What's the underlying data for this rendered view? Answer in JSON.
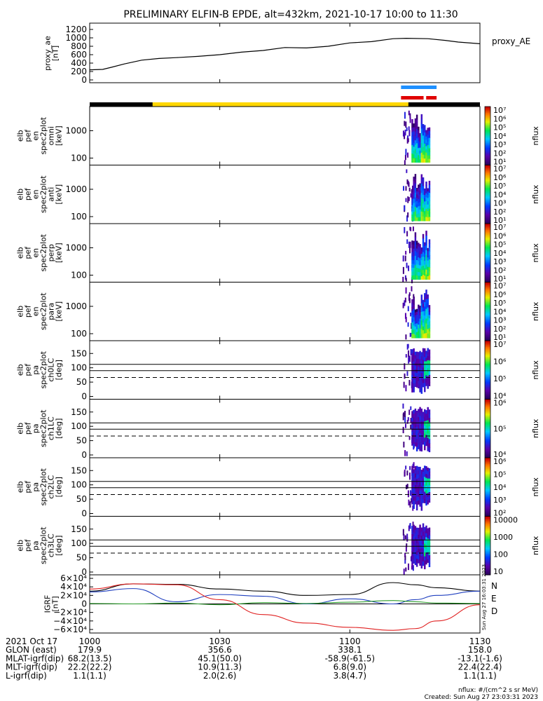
{
  "title": "PRELIMINARY ELFIN-B EPDE, alt=432km, 2021-10-17 10:00 to 11:30",
  "ae_panel": {
    "ylabel_lines": [
      "proxy_ae",
      "[nT]"
    ],
    "yticks": [
      "0",
      "200",
      "400",
      "600",
      "800",
      "1000",
      "1200"
    ],
    "legend": "proxy_AE"
  },
  "energy_panels": [
    {
      "ylabel_lines": [
        "elb",
        "pef",
        "en",
        "spec2plot",
        "omni",
        "[keV]"
      ],
      "yticks": [
        "100",
        "1000"
      ],
      "cbar_ticks": [
        "10⁷",
        "10⁶",
        "10⁵",
        "10⁴",
        "10³",
        "10²",
        "10¹"
      ],
      "cbar_label": "nflux"
    },
    {
      "ylabel_lines": [
        "elb",
        "pef",
        "en",
        "spec2plot",
        "anti",
        "[keV]"
      ],
      "yticks": [
        "100",
        "1000"
      ],
      "cbar_ticks": [
        "10⁷",
        "10⁶",
        "10⁵",
        "10⁴",
        "10³",
        "10²",
        "10¹"
      ],
      "cbar_label": "nflux"
    },
    {
      "ylabel_lines": [
        "elb",
        "pef",
        "en",
        "spec2plot",
        "perp",
        "[keV]"
      ],
      "yticks": [
        "100",
        "1000"
      ],
      "cbar_ticks": [
        "10⁷",
        "10⁶",
        "10⁵",
        "10⁴",
        "10³",
        "10²",
        "10¹"
      ],
      "cbar_label": "nflux"
    },
    {
      "ylabel_lines": [
        "elb",
        "pef",
        "en",
        "spec2plot",
        "para",
        "[keV]"
      ],
      "yticks": [
        "100",
        "1000"
      ],
      "cbar_ticks": [
        "10⁷",
        "10⁶",
        "10⁵",
        "10⁴",
        "10³",
        "10²",
        "10¹"
      ],
      "cbar_label": "nflux"
    }
  ],
  "pa_panels": [
    {
      "ylabel_lines": [
        "elb",
        "pef",
        "pa",
        "spec2plot",
        "ch0LC",
        "[deg]"
      ],
      "yticks": [
        "0",
        "50",
        "100",
        "150"
      ],
      "cbar_ticks": [
        "10⁷",
        "10⁶",
        "10⁵",
        "10⁴"
      ],
      "cbar_label": "nflux"
    },
    {
      "ylabel_lines": [
        "elb",
        "pef",
        "pa",
        "spec2plot",
        "ch1LC",
        "[deg]"
      ],
      "yticks": [
        "0",
        "50",
        "100",
        "150"
      ],
      "cbar_ticks": [
        "10⁶",
        "10⁵",
        "10⁴"
      ],
      "cbar_label": "nflux"
    },
    {
      "ylabel_lines": [
        "elb",
        "pef",
        "pa",
        "spec2plot",
        "ch2LC",
        "[deg]"
      ],
      "yticks": [
        "0",
        "50",
        "100",
        "150"
      ],
      "cbar_ticks": [
        "10⁶",
        "10⁵",
        "10⁴",
        "10³",
        "10²"
      ],
      "cbar_label": "nflux"
    },
    {
      "ylabel_lines": [
        "elb",
        "pef",
        "pa",
        "spec2plot",
        "ch3LC",
        "[deg]"
      ],
      "yticks": [
        "0",
        "50",
        "100",
        "150"
      ],
      "cbar_ticks": [
        "10000",
        "1000",
        "100",
        "10"
      ],
      "cbar_label": "nflux"
    }
  ],
  "igrf_panel": {
    "ylabel_lines": [
      "IGRF",
      "[nT]"
    ],
    "yticks": [
      "−6×10⁴",
      "−4×10⁴",
      "−2×10⁴",
      "0",
      "2×10⁴",
      "4×10⁴",
      "6×10⁴"
    ],
    "legend": [
      "N",
      "E",
      "D"
    ],
    "side_text": "Sun Aug 27 16:03:31 2023"
  },
  "footer": {
    "rows": [
      {
        "label": "2021 Oct 17",
        "values": [
          "1000",
          "1030",
          "1100",
          "1130"
        ]
      },
      {
        "label": "GLON (east)",
        "values": [
          "179.9",
          "356.6",
          "338.1",
          "158.0"
        ]
      },
      {
        "label": "MLAT-igrf(dip)",
        "values": [
          "68.2(13.5)",
          "45.1(50.0)",
          "-58.9(-61.5)",
          "-13.1(-1.6)"
        ]
      },
      {
        "label": "MLT-igrf(dip)",
        "values": [
          "22.2(22.2)",
          "10.9(11.3)",
          "6.8(9.0)",
          "22.4(22.4)"
        ]
      },
      {
        "label": "L-igrf(dip)",
        "values": [
          "1.1(1.1)",
          "2.0(2.6)",
          "3.8(4.7)",
          "1.1(1.1)"
        ]
      }
    ],
    "units_note": "nflux: #/(cm^2 s sr MeV)",
    "created": "Created: Sun Aug 27 23:03:31 2023"
  },
  "colors": {
    "ae_line": "#000000",
    "bar_blue": "#1e90ff",
    "bar_red": "#e00000",
    "bar_black": "#000000",
    "bar_yellow": "#ffd700",
    "igrf_N": "#1f3fbf",
    "igrf_E": "#2a9a2a",
    "igrf_D": "#e02020",
    "igrf_total": "#000000"
  },
  "chart_data": {
    "type": "line",
    "time_range": [
      "2021-10-17 10:00",
      "2021-10-17 11:30"
    ],
    "x_ticks_minutes": [
      0,
      30,
      60,
      90
    ],
    "proxy_ae": {
      "x_minutes": [
        0,
        3,
        5,
        8,
        12,
        16,
        20,
        25,
        30,
        35,
        40,
        45,
        50,
        55,
        60,
        65,
        70,
        73,
        78,
        82,
        85,
        90
      ],
      "y_nT": [
        240,
        250,
        300,
        380,
        470,
        510,
        530,
        560,
        600,
        660,
        700,
        770,
        760,
        800,
        880,
        910,
        980,
        990,
        980,
        940,
        900,
        860
      ],
      "ylim": [
        0,
        1300
      ]
    },
    "spectrogram_time_window_minutes": [
      72,
      80
    ],
    "igrf": {
      "x_minutes": [
        0,
        10,
        20,
        30,
        40,
        50,
        60,
        70,
        75,
        80,
        90
      ],
      "N": [
        28000,
        36000,
        5000,
        22000,
        18000,
        0,
        12000,
        0,
        10000,
        20000,
        30000
      ],
      "E": [
        1000,
        0,
        2000,
        -2000,
        3000,
        1000,
        4000,
        8000,
        5000,
        2000,
        1000
      ],
      "D": [
        35000,
        47000,
        45000,
        10000,
        -25000,
        -45000,
        -55000,
        -62000,
        -58000,
        -40000,
        -2000
      ],
      "F": [
        30000,
        47000,
        46000,
        35000,
        30000,
        20000,
        22000,
        50000,
        45000,
        38000,
        30000
      ],
      "ylim": [
        -65000,
        65000
      ]
    }
  }
}
